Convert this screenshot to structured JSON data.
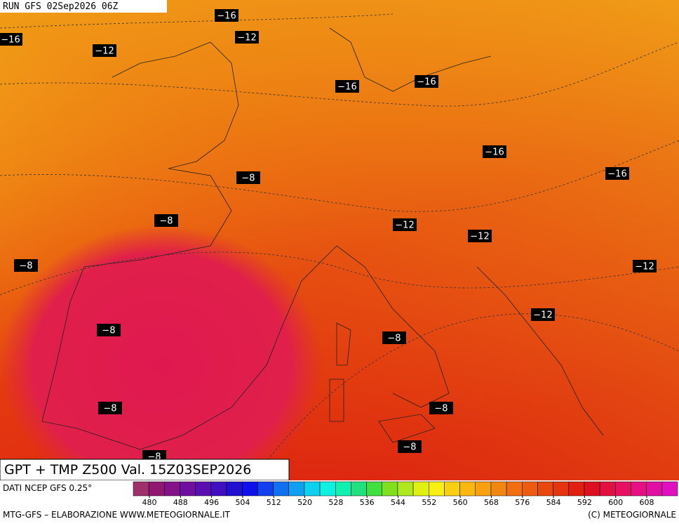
{
  "header": {
    "run": "RUN GFS 02Sep2026 06Z"
  },
  "contour_labels": [
    "−16",
    "−16",
    "−12",
    "−12",
    "−16",
    "−16",
    "−16",
    "−16",
    "−8",
    "−8",
    "−12",
    "−12",
    "−8",
    "−12",
    "−12",
    "−8",
    "−8",
    "−8",
    "−8",
    "−8",
    "−8"
  ],
  "title": "GPT + TMP Z500 Val. 15Z03SEP2026",
  "footer": {
    "source": "DATI NCEP GFS 0.25°",
    "credit": "MTG-GFS – ELABORAZIONE WWW.METEOGIORNALE.IT",
    "copyright": "(C) METEOGIORNALE"
  },
  "colorbar": {
    "ticks": [
      480,
      488,
      496,
      504,
      512,
      520,
      528,
      536,
      544,
      552,
      560,
      568,
      576,
      584,
      592,
      600,
      608
    ]
  }
}
